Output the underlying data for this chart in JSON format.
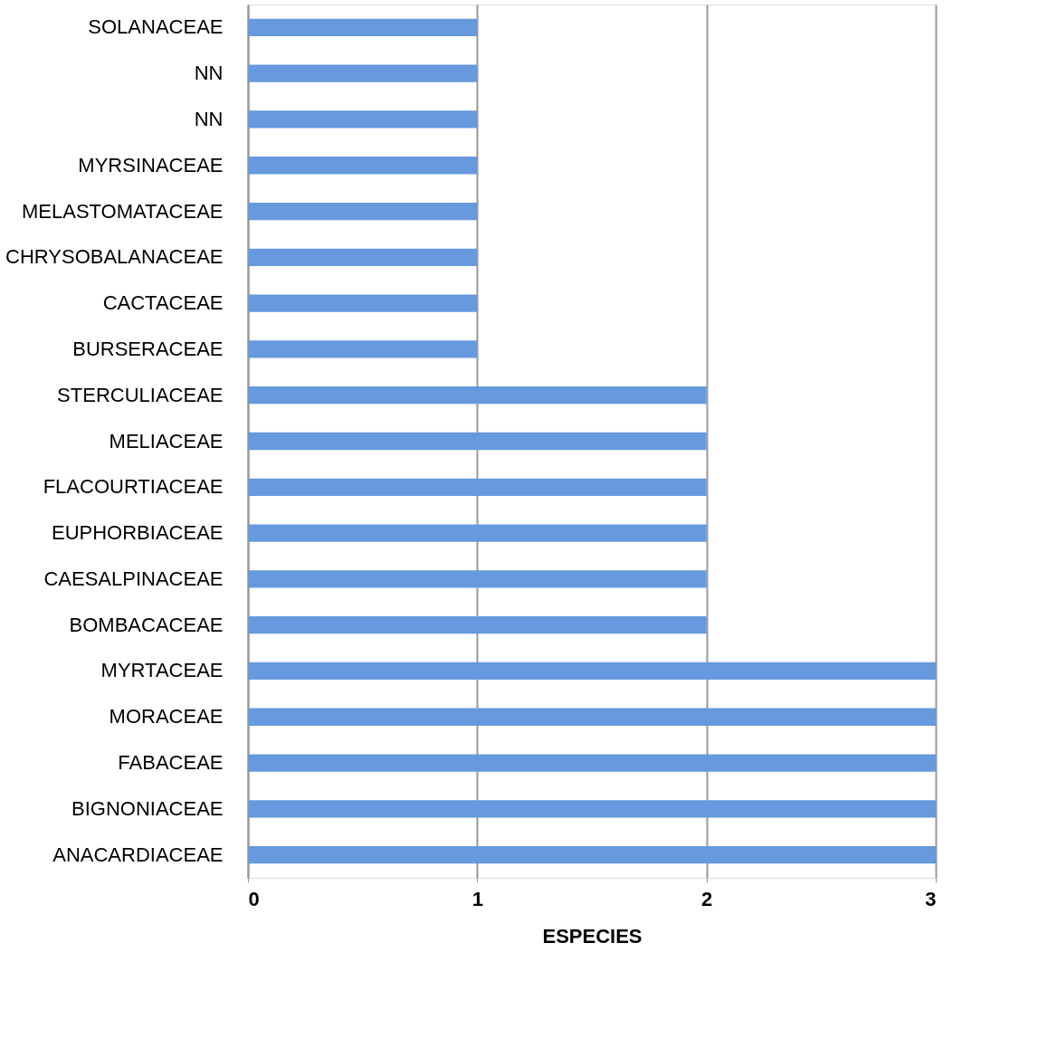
{
  "chart_data": {
    "type": "bar",
    "orientation": "horizontal",
    "xlabel": "ESPECIES",
    "categories": [
      "SOLANACEAE",
      "NN",
      "NN",
      "MYRSINACEAE",
      "MELASTOMATACEAE",
      "CHRYSOBALANACEAE",
      "CACTACEAE",
      "BURSERACEAE",
      "STERCULIACEAE",
      "MELIACEAE",
      "FLACOURTIACEAE",
      "EUPHORBIACEAE",
      "CAESALPINACEAE",
      "BOMBACACEAE",
      "MYRTACEAE",
      "MORACEAE",
      "FABACEAE",
      "BIGNONIACEAE",
      "ANACARDIACEAE"
    ],
    "values": [
      1,
      1,
      1,
      1,
      1,
      1,
      1,
      1,
      2,
      2,
      2,
      2,
      2,
      2,
      3,
      3,
      3,
      3,
      3
    ],
    "color": "#6699dd",
    "xlim": [
      0,
      3
    ],
    "xticks": [
      0,
      1,
      2,
      3
    ],
    "grid": "x"
  }
}
